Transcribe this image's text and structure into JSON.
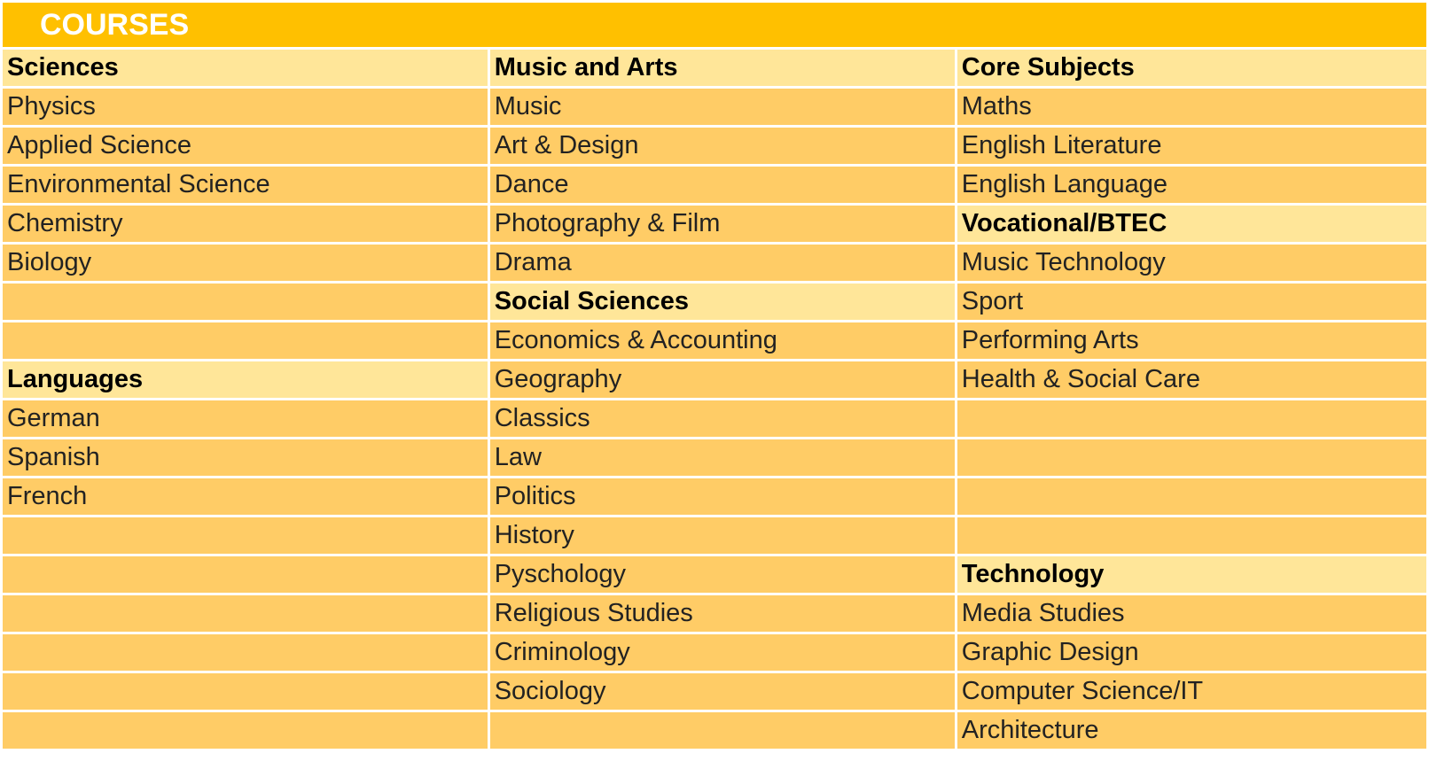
{
  "title": "COURSES",
  "columns": [
    [
      {
        "text": "Sciences",
        "heading": true
      },
      {
        "text": "Physics"
      },
      {
        "text": "Applied Science"
      },
      {
        "text": "Environmental Science"
      },
      {
        "text": "Chemistry"
      },
      {
        "text": "Biology"
      },
      {
        "text": ""
      },
      {
        "text": ""
      },
      {
        "text": "Languages",
        "heading": true
      },
      {
        "text": "German"
      },
      {
        "text": "Spanish"
      },
      {
        "text": "French"
      },
      {
        "text": ""
      },
      {
        "text": ""
      },
      {
        "text": ""
      },
      {
        "text": ""
      },
      {
        "text": ""
      },
      {
        "text": ""
      }
    ],
    [
      {
        "text": "Music and Arts",
        "heading": true
      },
      {
        "text": "Music"
      },
      {
        "text": "Art & Design"
      },
      {
        "text": "Dance"
      },
      {
        "text": "Photography & Film"
      },
      {
        "text": "Drama"
      },
      {
        "text": "Social Sciences",
        "heading": true
      },
      {
        "text": "Economics & Accounting"
      },
      {
        "text": "Geography"
      },
      {
        "text": "Classics"
      },
      {
        "text": "Law"
      },
      {
        "text": "Politics"
      },
      {
        "text": "History"
      },
      {
        "text": "Pyschology"
      },
      {
        "text": "Religious Studies"
      },
      {
        "text": "Criminology"
      },
      {
        "text": "Sociology"
      },
      {
        "text": ""
      }
    ],
    [
      {
        "text": "Core Subjects",
        "heading": true
      },
      {
        "text": "Maths"
      },
      {
        "text": "English Literature"
      },
      {
        "text": "English Language"
      },
      {
        "text": "Vocational/BTEC",
        "heading": true
      },
      {
        "text": "Music Technology"
      },
      {
        "text": "Sport"
      },
      {
        "text": "Performing Arts"
      },
      {
        "text": "Health & Social Care"
      },
      {
        "text": ""
      },
      {
        "text": ""
      },
      {
        "text": ""
      },
      {
        "text": ""
      },
      {
        "text": "Technology",
        "heading": true
      },
      {
        "text": "Media Studies"
      },
      {
        "text": "Graphic Design"
      },
      {
        "text": "Computer Science/IT"
      },
      {
        "text": "Architecture"
      }
    ]
  ],
  "colors": {
    "title_bg": "#ffc000",
    "heading_bg": "#ffe699",
    "cell_bg": "#ffcc66"
  }
}
